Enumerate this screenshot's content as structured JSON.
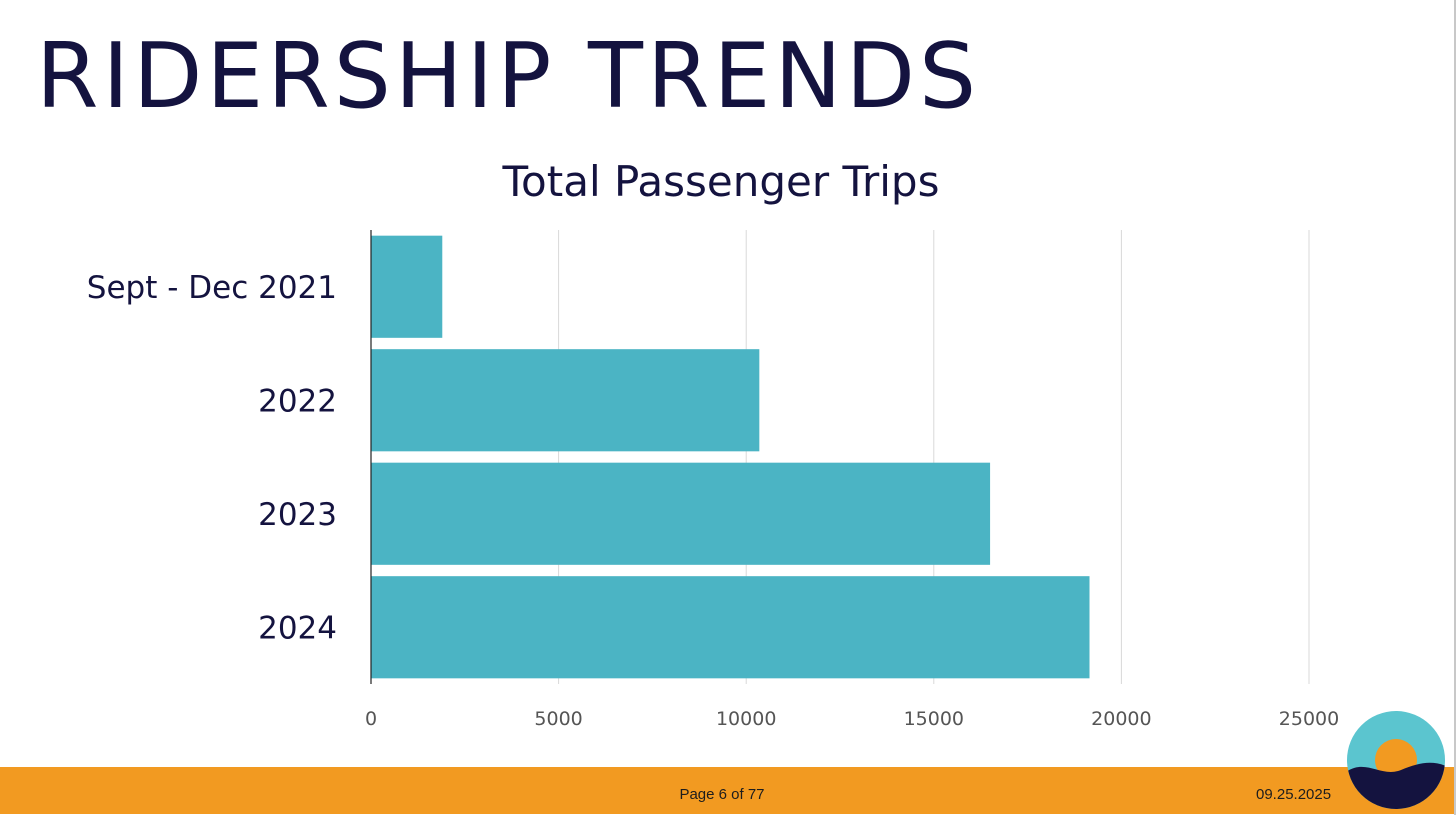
{
  "slide": {
    "title": "RIDERSHIP TRENDS"
  },
  "chart_data": {
    "type": "bar",
    "orientation": "horizontal",
    "title": "Total Passenger Trips",
    "categories": [
      "Sept - Dec 2021",
      "2022",
      "2023",
      "2024"
    ],
    "values": [
      1900,
      10350,
      16500,
      19150
    ],
    "xlim": [
      0,
      25000
    ],
    "xticks": [
      "0",
      "5000",
      "10000",
      "15000",
      "20000",
      "25000"
    ],
    "xlabel": "",
    "ylabel": "",
    "grid": "vertical",
    "legend": "none",
    "bar_color": "#4bb4c4"
  },
  "footer": {
    "page": "Page 6 of 77",
    "date": "09.25.2025",
    "bar_color": "#f29a21"
  },
  "colors": {
    "title": "#14133f",
    "logo_sky": "#5bc5cf",
    "logo_sun": "#f29a21",
    "logo_sea": "#14133f"
  }
}
